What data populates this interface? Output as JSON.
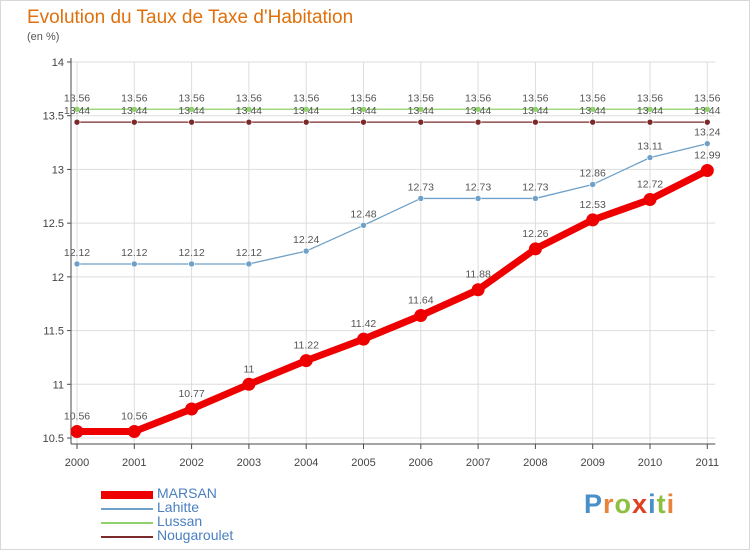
{
  "header": {
    "title": "Evolution du Taux de Taxe d'Habitation",
    "subtitle": "(en %)"
  },
  "colors": {
    "title": "#e0700c",
    "axis": "#4a4a4a",
    "grid": "#dddddd"
  },
  "logo": {
    "text": "Proxiti",
    "letters": [
      {
        "ch": "P",
        "color": "#4a90c8"
      },
      {
        "ch": "r",
        "color": "#e8843a"
      },
      {
        "ch": "o",
        "color": "#8fbf3f"
      },
      {
        "ch": "x",
        "color": "#e0401e"
      },
      {
        "ch": "i",
        "color": "#4a90c8"
      },
      {
        "ch": "t",
        "color": "#8fbf3f"
      },
      {
        "ch": "i",
        "color": "#e8843a"
      }
    ]
  },
  "chart_data": {
    "type": "line",
    "title": "Evolution du Taux de Taxe d'Habitation",
    "subtitle": "(en %)",
    "xlabel": "",
    "ylabel": "",
    "x": [
      "2000",
      "2001",
      "2002",
      "2003",
      "2004",
      "2005",
      "2006",
      "2007",
      "2008",
      "2009",
      "2010",
      "2011"
    ],
    "y_ticks": [
      "10.5",
      "11",
      "11.5",
      "12",
      "12.5",
      "13",
      "13.5",
      "14"
    ],
    "ylim": [
      10.5,
      14
    ],
    "grid": true,
    "legend_position": "bottom-left",
    "series": [
      {
        "name": "MARSAN",
        "color": "#ee0000",
        "width": 7,
        "marker": 6.5,
        "values": [
          10.56,
          10.56,
          10.77,
          11,
          11.22,
          11.42,
          11.64,
          11.88,
          12.26,
          12.53,
          12.72,
          12.99
        ],
        "labels": [
          "10.56",
          "10.56",
          "10.77",
          "11",
          "11.22",
          "11.42",
          "11.64",
          "11.88",
          "12.26",
          "12.53",
          "12.72",
          "12.99"
        ],
        "label_side": "above"
      },
      {
        "name": "Lahitte",
        "color": "#6fa1c8",
        "width": 1.3,
        "marker": 3,
        "values": [
          12.12,
          12.12,
          12.12,
          12.12,
          12.24,
          12.48,
          12.73,
          12.73,
          12.73,
          12.86,
          13.11,
          13.24
        ],
        "labels": [
          "12.12",
          "12.12",
          "12.12",
          "12.12",
          "12.24",
          "12.48",
          "12.73",
          "12.73",
          "12.73",
          "12.86",
          "13.11",
          "13.24"
        ],
        "label_side": "above"
      },
      {
        "name": "Lussan",
        "color": "#8fd16a",
        "width": 1.3,
        "marker": 3,
        "values": [
          13.56,
          13.56,
          13.56,
          13.56,
          13.56,
          13.56,
          13.56,
          13.56,
          13.56,
          13.56,
          13.56,
          13.56
        ],
        "labels": [
          "13.56",
          "13.56",
          "13.56",
          "13.56",
          "13.56",
          "13.56",
          "13.56",
          "13.56",
          "13.56",
          "13.56",
          "13.56",
          "13.56"
        ],
        "label_side": "above"
      },
      {
        "name": "Nougaroulet",
        "color": "#7a2a2a",
        "width": 1.3,
        "marker": 3,
        "values": [
          13.44,
          13.44,
          13.44,
          13.44,
          13.44,
          13.44,
          13.44,
          13.44,
          13.44,
          13.44,
          13.44,
          13.44
        ],
        "labels": [
          "13.44",
          "13.44",
          "13.44",
          "13.44",
          "13.44",
          "13.44",
          "13.44",
          "13.44",
          "13.44",
          "13.44",
          "13.44",
          "13.44"
        ],
        "label_side": "above"
      }
    ]
  }
}
